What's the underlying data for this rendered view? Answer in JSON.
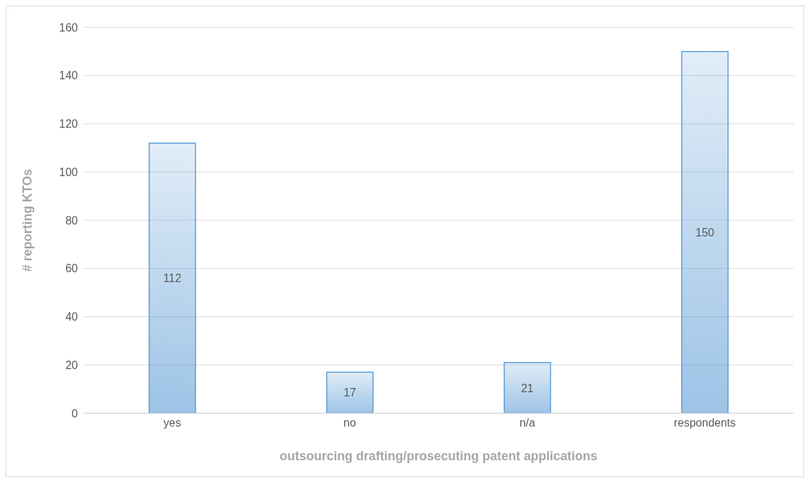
{
  "chart_data": {
    "type": "bar",
    "xlabel": "outsourcing drafting/prosecuting patent applications",
    "ylabel": "# reporting KTOs",
    "categories": [
      "yes",
      "no",
      "n/a",
      "respondents"
    ],
    "values": [
      112,
      17,
      21,
      150
    ],
    "color": "#5b9bd5",
    "ylim": [
      0,
      160
    ],
    "yticks": [
      0,
      20,
      40,
      60,
      80,
      100,
      120,
      140,
      160
    ],
    "grid": "y",
    "data_labels": true
  }
}
